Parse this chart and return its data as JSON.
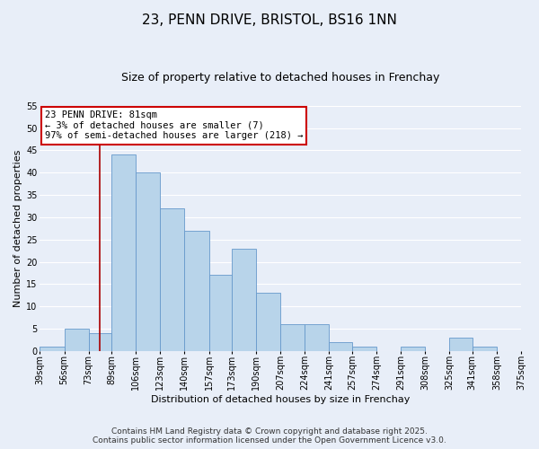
{
  "title": "23, PENN DRIVE, BRISTOL, BS16 1NN",
  "subtitle": "Size of property relative to detached houses in Frenchay",
  "xlabel": "Distribution of detached houses by size in Frenchay",
  "ylabel": "Number of detached properties",
  "bar_values": [
    1,
    5,
    4,
    44,
    40,
    32,
    27,
    17,
    23,
    13,
    6,
    6,
    2,
    1,
    0,
    1,
    0,
    3,
    1,
    0
  ],
  "bin_edges": [
    39,
    56,
    73,
    89,
    106,
    123,
    140,
    157,
    173,
    190,
    207,
    224,
    241,
    257,
    274,
    291,
    308,
    325,
    341,
    358,
    375
  ],
  "tick_labels": [
    "39sqm",
    "56sqm",
    "73sqm",
    "89sqm",
    "106sqm",
    "123sqm",
    "140sqm",
    "157sqm",
    "173sqm",
    "190sqm",
    "207sqm",
    "224sqm",
    "241sqm",
    "257sqm",
    "274sqm",
    "291sqm",
    "308sqm",
    "325sqm",
    "341sqm",
    "358sqm",
    "375sqm"
  ],
  "bar_color": "#b8d4ea",
  "bar_edge_color": "#6699cc",
  "vline_x": 81,
  "vline_color": "#aa0000",
  "ylim": [
    0,
    55
  ],
  "yticks": [
    0,
    5,
    10,
    15,
    20,
    25,
    30,
    35,
    40,
    45,
    50,
    55
  ],
  "annotation_title": "23 PENN DRIVE: 81sqm",
  "annotation_line1": "← 3% of detached houses are smaller (7)",
  "annotation_line2": "97% of semi-detached houses are larger (218) →",
  "annotation_box_color": "#ffffff",
  "annotation_border_color": "#cc0000",
  "footer1": "Contains HM Land Registry data © Crown copyright and database right 2025.",
  "footer2": "Contains public sector information licensed under the Open Government Licence v3.0.",
  "bg_color": "#e8eef8",
  "grid_color": "#ffffff",
  "title_fontsize": 11,
  "subtitle_fontsize": 9,
  "axis_label_fontsize": 8,
  "tick_label_fontsize": 7,
  "annotation_fontsize": 7.5,
  "footer_fontsize": 6.5
}
